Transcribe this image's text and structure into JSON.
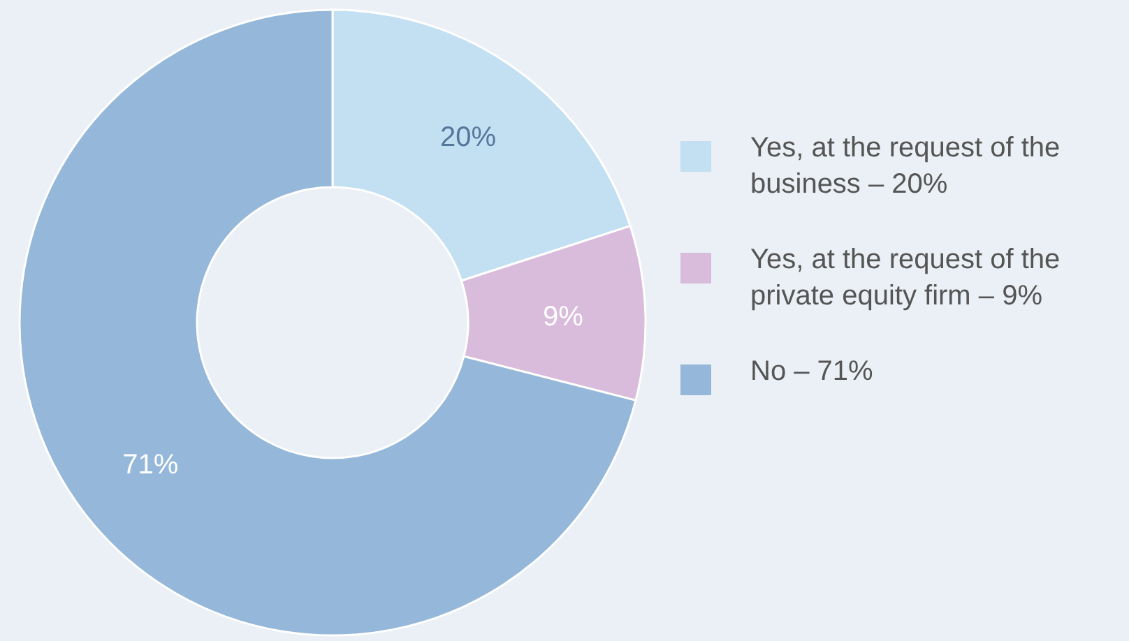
{
  "chart_data": {
    "type": "donut",
    "categories": [
      "Yes, at the request of the business – 20%",
      "Yes, at the request of the private equity firm – 9%",
      "No – 71%"
    ],
    "values": [
      20,
      9,
      71
    ],
    "colors": [
      "#c3dff2",
      "#d9bcdb",
      "#95b7d9"
    ],
    "value_labels": [
      "20%",
      "9%",
      "71%"
    ],
    "legend": "right"
  }
}
